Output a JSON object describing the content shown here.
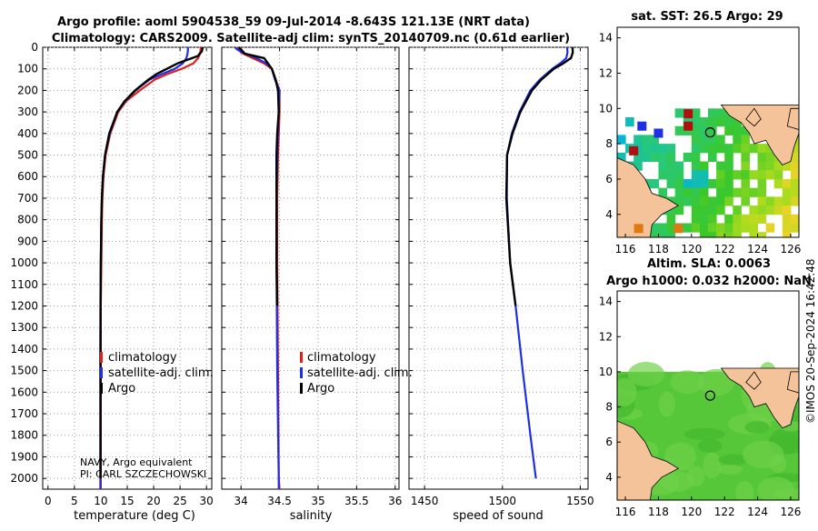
{
  "title": {
    "line1": "Argo profile: aoml 5904538_59 09-Jul-2014 -8.643S 121.13E (NRT data)",
    "line2": "Climatology: CARS2009. Satellite-adj clim: synTS_20140709.nc (0.61d earlier)"
  },
  "colors": {
    "climatology": "#e0201b",
    "satellite": "#1f2fe6",
    "argo": "#000000",
    "land": "#f5c39a"
  },
  "chart_data": [
    {
      "type": "line",
      "id": "temperature",
      "xlabel": "temperature (deg C)",
      "ylabel": "",
      "xlim": [
        -1,
        31
      ],
      "ylim": [
        2050,
        0
      ],
      "x_ticks": [
        "0",
        "5",
        "10",
        "15",
        "20",
        "25",
        "30"
      ],
      "y_ticks": [
        "0",
        "100",
        "200",
        "300",
        "400",
        "500",
        "600",
        "700",
        "800",
        "900",
        "1000",
        "1100",
        "1200",
        "1300",
        "1400",
        "1500",
        "1600",
        "1700",
        "1800",
        "1900",
        "2000"
      ],
      "legend": [
        "climatology",
        "satellite-adj. clim.",
        "Argo"
      ],
      "notes": [
        "NAVY, Argo equivalent",
        "PI: CARL SZCZECHOWSKI"
      ],
      "series": [
        {
          "name": "climatology",
          "depth": [
            0,
            10,
            30,
            50,
            75,
            100,
            125,
            150,
            200,
            250,
            300,
            400,
            500,
            600,
            700,
            800,
            1000,
            1200,
            1400,
            1600,
            1800,
            2000,
            2050
          ],
          "values": [
            28.9,
            28.9,
            28.8,
            28.4,
            27.5,
            25.3,
            22.5,
            20.2,
            17.4,
            14.8,
            13.3,
            11.8,
            10.9,
            10.5,
            10.3,
            10.2,
            10.1,
            10.0,
            10.0,
            10.0,
            10.0,
            10.0,
            10.0
          ]
        },
        {
          "name": "satellite-adj. clim.",
          "depth": [
            0,
            10,
            30,
            50,
            75,
            100,
            125,
            150,
            200,
            250,
            300,
            400,
            500,
            600,
            700,
            800,
            1000,
            1200,
            1400,
            1600,
            1800,
            2000,
            2050
          ],
          "values": [
            26.5,
            26.5,
            26.4,
            26.2,
            25.5,
            24.0,
            21.5,
            19.2,
            16.6,
            14.6,
            13.1,
            11.7,
            10.8,
            10.4,
            10.2,
            10.1,
            10.0,
            9.95,
            9.9,
            9.9,
            9.9,
            9.9,
            9.9
          ]
        },
        {
          "name": "Argo",
          "depth": [
            0,
            10,
            20,
            30,
            40,
            50,
            75,
            100,
            125,
            150,
            200,
            250,
            300,
            400,
            500,
            600,
            700,
            800,
            900,
            1000,
            1200,
            1400,
            1600,
            1800,
            2000
          ],
          "values": [
            29.3,
            29.2,
            29.1,
            28.7,
            28.4,
            27.3,
            24.5,
            22.5,
            20.5,
            19.0,
            16.5,
            14.5,
            13.1,
            11.6,
            10.8,
            10.4,
            10.2,
            10.1,
            10.05,
            10.0,
            9.95,
            9.95,
            9.95,
            9.95,
            9.95
          ]
        }
      ]
    },
    {
      "type": "line",
      "id": "salinity",
      "xlabel": "salinity",
      "ylabel": "",
      "xlim": [
        33.75,
        36.05
      ],
      "ylim": [
        2050,
        0
      ],
      "x_ticks": [
        "34",
        "34.5",
        "35",
        "35.5",
        "36"
      ],
      "legend": [
        "climatology",
        "satellite-adj. clim.",
        "Argo"
      ],
      "series": [
        {
          "name": "climatology",
          "depth": [
            0,
            10,
            25,
            50,
            75,
            100,
            150,
            200,
            300,
            500,
            700,
            1000,
            1500,
            2000,
            2050
          ],
          "values": [
            33.96,
            33.97,
            34.0,
            34.15,
            34.3,
            34.4,
            34.45,
            34.5,
            34.5,
            34.48,
            34.47,
            34.47,
            34.48,
            34.49,
            34.5
          ]
        },
        {
          "name": "satellite-adj. clim.",
          "depth": [
            0,
            10,
            25,
            50,
            75,
            100,
            150,
            200,
            300,
            500,
            700,
            1000,
            1500,
            2000,
            2050
          ],
          "values": [
            33.92,
            33.95,
            34.02,
            34.2,
            34.33,
            34.4,
            34.44,
            34.5,
            34.49,
            34.47,
            34.46,
            34.46,
            34.47,
            34.49,
            34.49
          ]
        },
        {
          "name": "Argo",
          "depth": [
            0,
            10,
            30,
            50,
            75,
            100,
            150,
            200,
            300,
            400,
            500,
            600,
            800,
            1000,
            1200
          ],
          "values": [
            33.97,
            34.0,
            34.05,
            34.3,
            34.35,
            34.4,
            34.45,
            34.48,
            34.49,
            34.47,
            34.46,
            34.46,
            34.46,
            34.46,
            34.47
          ]
        }
      ]
    },
    {
      "type": "line",
      "id": "sound",
      "xlabel": "speed of sound",
      "ylabel": "",
      "xlim": [
        1440,
        1555
      ],
      "ylim": [
        2050,
        0
      ],
      "x_ticks": [
        "1450",
        "1500",
        "1550"
      ],
      "series": [
        {
          "name": "satellite-adj. clim.",
          "depth": [
            0,
            25,
            50,
            75,
            100,
            150,
            200,
            300,
            400,
            500,
            700,
            1000,
            1200,
            1500,
            1800,
            2000
          ],
          "values": [
            1541.6,
            1541.8,
            1541,
            1537,
            1532,
            1524,
            1518,
            1511,
            1506,
            1503,
            1502.8,
            1505,
            1508.5,
            1513,
            1518,
            1521.5
          ]
        },
        {
          "name": "Argo",
          "depth": [
            0,
            25,
            50,
            75,
            100,
            150,
            200,
            300,
            400,
            500,
            700,
            1000,
            1200
          ],
          "values": [
            1545,
            1545.2,
            1544,
            1539,
            1533,
            1525,
            1519,
            1511.5,
            1506.5,
            1503,
            1502.5,
            1505,
            1508.5
          ]
        }
      ]
    },
    {
      "type": "heatmap",
      "id": "sst_map",
      "title": "sat. SST: 26.5 Argo: 29",
      "x_ticks": [
        "116",
        "118",
        "120",
        "122",
        "124",
        "126"
      ],
      "y_ticks": [
        "4",
        "6",
        "8",
        "10",
        "12",
        "14"
      ],
      "xlim": [
        115.5,
        126.5
      ],
      "ylim": [
        2.7,
        14.6
      ],
      "argo_position": [
        121.13,
        8.643
      ]
    },
    {
      "type": "heatmap",
      "id": "sla_map",
      "title": "Altim. SLA: 0.0063",
      "subtitle": "Argo h1000: 0.032 h2000: NaN",
      "x_ticks": [
        "116",
        "118",
        "120",
        "122",
        "124",
        "126"
      ],
      "y_ticks": [
        "4",
        "6",
        "8",
        "10",
        "12",
        "14"
      ],
      "xlim": [
        115.5,
        126.5
      ],
      "ylim": [
        2.7,
        14.6
      ],
      "argo_position": [
        121.13,
        8.643
      ]
    }
  ],
  "footer": {
    "stamp": "©IMOS 20-Sep-2024 16:42:48"
  }
}
